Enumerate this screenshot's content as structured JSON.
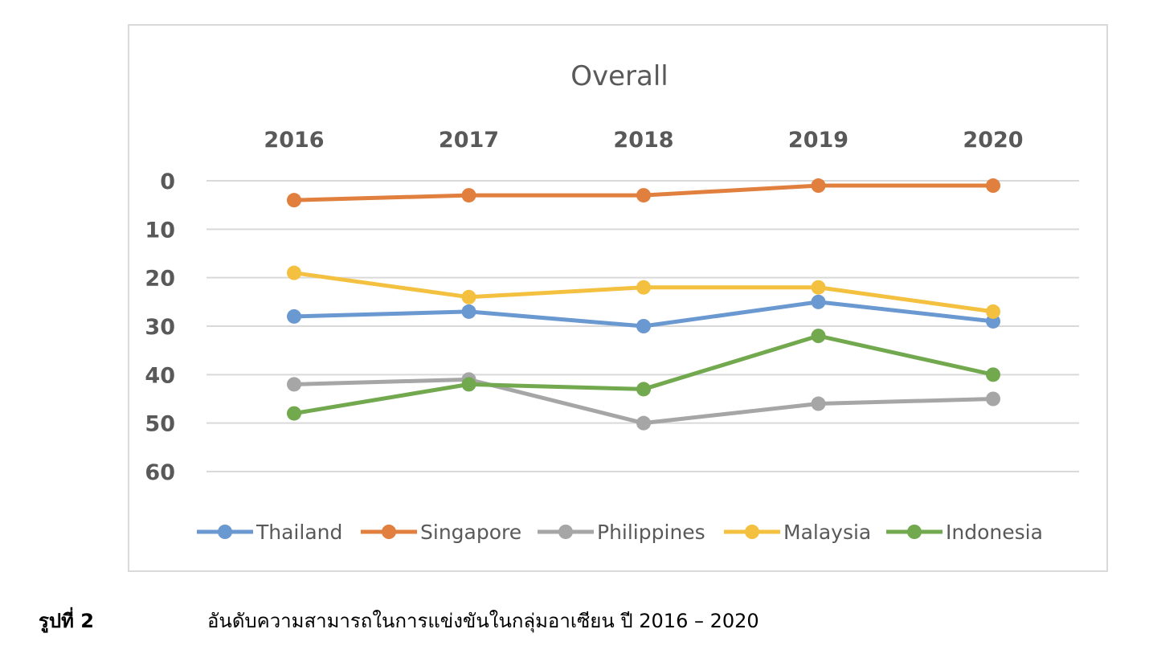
{
  "chart_data": {
    "type": "line",
    "title": "Overall",
    "categories": [
      "2016",
      "2017",
      "2018",
      "2019",
      "2020"
    ],
    "y_axis": {
      "reversed": true,
      "ylim": [
        0,
        60
      ],
      "ticks": [
        0,
        10,
        20,
        30,
        40,
        50,
        60
      ],
      "tick_labels": [
        "0",
        "10",
        "20",
        "30",
        "40",
        "50",
        "60"
      ],
      "gridlines": true
    },
    "x_axis_position": "top",
    "legend_position": "bottom",
    "series": [
      {
        "name": "Thailand",
        "color": "#6a98d0",
        "values": [
          28,
          27,
          30,
          25,
          29
        ]
      },
      {
        "name": "Singapore",
        "color": "#e07f3e",
        "values": [
          4,
          3,
          3,
          1,
          1
        ]
      },
      {
        "name": "Philippines",
        "color": "#a6a6a6",
        "values": [
          42,
          41,
          50,
          46,
          45
        ]
      },
      {
        "name": "Malaysia",
        "color": "#f4c040",
        "values": [
          19,
          24,
          22,
          22,
          27
        ]
      },
      {
        "name": "Indonesia",
        "color": "#72a84e",
        "values": [
          48,
          42,
          43,
          32,
          40
        ]
      }
    ]
  },
  "caption": {
    "label": "รูปที่ 2",
    "text": "อันดับความสามารถในการแข่งขันในกลุ่มอาเซียน ปี 2016 – 2020"
  }
}
